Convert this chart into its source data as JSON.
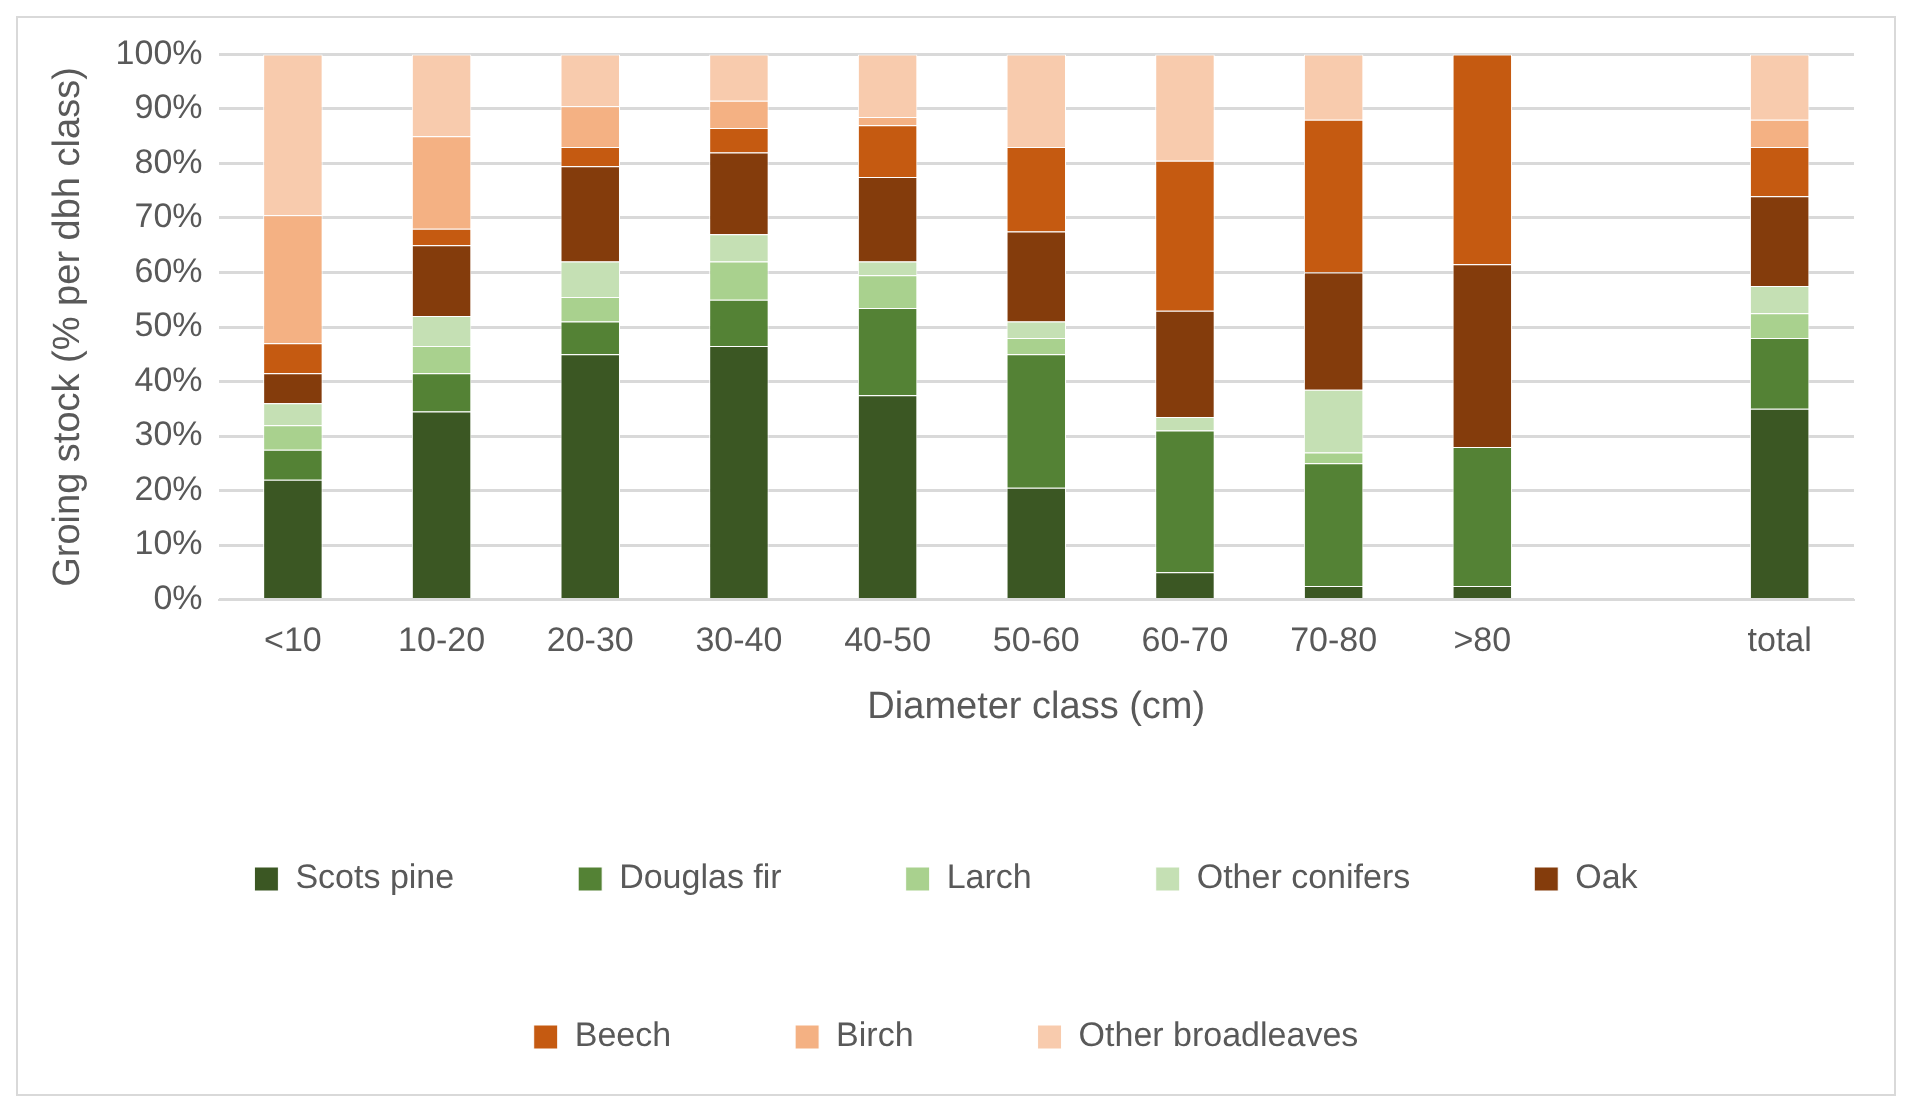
{
  "chart_data": {
    "type": "bar",
    "stacked": true,
    "xlabel": "Diameter class (cm)",
    "ylabel": "Groing stock (% per dbh class)",
    "categories": [
      "<10",
      "10-20",
      "20-30",
      "30-40",
      "40-50",
      "50-60",
      "60-70",
      "70-80",
      ">80",
      null,
      "total"
    ],
    "series": [
      {
        "name": "Scots pine",
        "color": "#3b5723",
        "values": [
          22,
          34.5,
          45,
          46.5,
          37.5,
          20.5,
          5,
          2.5,
          2.5,
          null,
          35
        ]
      },
      {
        "name": "Douglas fir",
        "color": "#548235",
        "values": [
          5.5,
          7,
          6,
          8.5,
          16,
          24.5,
          26,
          22.5,
          25.5,
          null,
          13
        ]
      },
      {
        "name": "Larch",
        "color": "#a9d18e",
        "values": [
          4.5,
          5,
          4.5,
          7,
          6,
          3,
          0,
          2,
          0,
          null,
          4.5
        ]
      },
      {
        "name": "Other conifers",
        "color": "#c5e0b4",
        "values": [
          4,
          5.5,
          6.5,
          5,
          2.5,
          3,
          2.5,
          11.5,
          0,
          null,
          5
        ]
      },
      {
        "name": "Oak",
        "color": "#843c0c",
        "values": [
          5.5,
          13,
          17.5,
          15,
          15.5,
          16.5,
          19.5,
          21.5,
          33.5,
          null,
          16.5
        ]
      },
      {
        "name": "Beech",
        "color": "#c55a11",
        "values": [
          5.5,
          3,
          3.5,
          4.5,
          9.5,
          15.5,
          27.5,
          28,
          38.5,
          null,
          9
        ]
      },
      {
        "name": "Birch",
        "color": "#f4b183",
        "values": [
          23.5,
          17,
          7.5,
          5,
          1.5,
          0,
          0,
          0,
          0,
          null,
          5
        ]
      },
      {
        "name": "Other broadleaves",
        "color": "#f8cbad",
        "values": [
          29.5,
          15,
          9.5,
          8.5,
          11.5,
          17,
          19.5,
          12,
          0,
          null,
          12
        ]
      }
    ],
    "ylim": [
      0,
      100
    ],
    "yticks": [
      {
        "value": 0,
        "label": "0%"
      },
      {
        "value": 10,
        "label": "10%"
      },
      {
        "value": 20,
        "label": "20%"
      },
      {
        "value": 30,
        "label": "30%"
      },
      {
        "value": 40,
        "label": "40%"
      },
      {
        "value": 50,
        "label": "50%"
      },
      {
        "value": 60,
        "label": "60%"
      },
      {
        "value": 70,
        "label": "70%"
      },
      {
        "value": 80,
        "label": "80%"
      },
      {
        "value": 90,
        "label": "90%"
      },
      {
        "value": 100,
        "label": "100%"
      }
    ],
    "grid": "y",
    "legend": "bottom"
  }
}
